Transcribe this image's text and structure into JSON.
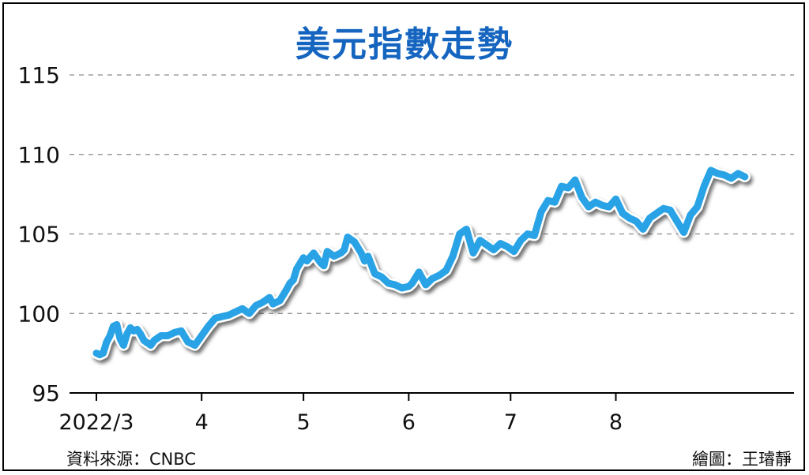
{
  "title": "美元指數走勢",
  "source": "資料來源：CNBC",
  "credit": "繪圖：王璿靜",
  "colors": {
    "line": "#29a3e6",
    "title": "#1565c0"
  },
  "chart_data": {
    "type": "line",
    "title": "美元指數走勢",
    "xlabel": "",
    "ylabel": "",
    "ylim": [
      95,
      115
    ],
    "yticks": [
      95,
      100,
      105,
      110,
      115
    ],
    "grid": "horizontal dashed",
    "xlim": [
      "2022-03-01",
      "2022-09-12"
    ],
    "xticks": [
      {
        "label": "2022/3",
        "date": "2022-03-01"
      },
      {
        "label": "4",
        "date": "2022-04-01"
      },
      {
        "label": "5",
        "date": "2022-05-01"
      },
      {
        "label": "6",
        "date": "2022-06-01"
      },
      {
        "label": "7",
        "date": "2022-07-01"
      },
      {
        "label": "8",
        "date": "2022-08-01"
      }
    ],
    "series": [
      {
        "x": [
          "2022-03-01",
          "2022-03-02",
          "2022-03-03",
          "2022-03-04",
          "2022-03-05",
          "2022-03-06",
          "2022-03-07",
          "2022-03-08",
          "2022-03-09",
          "2022-03-10",
          "2022-03-11",
          "2022-03-12",
          "2022-03-13",
          "2022-03-14",
          "2022-03-15",
          "2022-03-17",
          "2022-03-18",
          "2022-03-20",
          "2022-03-22",
          "2022-03-24",
          "2022-03-26",
          "2022-03-28",
          "2022-03-30",
          "2022-04-01",
          "2022-04-03",
          "2022-04-05",
          "2022-04-07",
          "2022-04-09",
          "2022-04-11",
          "2022-04-13",
          "2022-04-15",
          "2022-04-17",
          "2022-04-19",
          "2022-04-21",
          "2022-04-22",
          "2022-04-24",
          "2022-04-26",
          "2022-04-27",
          "2022-04-28",
          "2022-04-29",
          "2022-05-01",
          "2022-05-02",
          "2022-05-04",
          "2022-05-06",
          "2022-05-07",
          "2022-05-08",
          "2022-05-10",
          "2022-05-12",
          "2022-05-13",
          "2022-05-14",
          "2022-05-16",
          "2022-05-18",
          "2022-05-19",
          "2022-05-20",
          "2022-05-22",
          "2022-05-24",
          "2022-05-26",
          "2022-05-28",
          "2022-05-30",
          "2022-06-01",
          "2022-06-02",
          "2022-06-04",
          "2022-06-06",
          "2022-06-08",
          "2022-06-10",
          "2022-06-12",
          "2022-06-14",
          "2022-06-16",
          "2022-06-18",
          "2022-06-20",
          "2022-06-22",
          "2022-06-24",
          "2022-06-26",
          "2022-06-28",
          "2022-06-30",
          "2022-07-02",
          "2022-07-04",
          "2022-07-06",
          "2022-07-08",
          "2022-07-10",
          "2022-07-12",
          "2022-07-14",
          "2022-07-16",
          "2022-07-18",
          "2022-07-20",
          "2022-07-22",
          "2022-07-24",
          "2022-07-26",
          "2022-07-28",
          "2022-07-30",
          "2022-08-01",
          "2022-08-03",
          "2022-08-05",
          "2022-08-07",
          "2022-08-09",
          "2022-08-11",
          "2022-08-13",
          "2022-08-15",
          "2022-08-17",
          "2022-08-19",
          "2022-08-21",
          "2022-08-23",
          "2022-08-25",
          "2022-08-27",
          "2022-08-29",
          "2022-08-31",
          "2022-09-02",
          "2022-09-04",
          "2022-09-06",
          "2022-09-08"
        ],
        "values": [
          97.5,
          97.4,
          97.5,
          98.2,
          98.6,
          99.2,
          99.3,
          98.4,
          98.0,
          98.7,
          99.1,
          98.9,
          99.0,
          98.7,
          98.3,
          98.0,
          98.3,
          98.6,
          98.6,
          98.8,
          98.9,
          98.2,
          98.0,
          98.6,
          99.2,
          99.7,
          99.8,
          99.9,
          100.1,
          100.3,
          100.0,
          100.5,
          100.7,
          101.0,
          100.6,
          100.8,
          101.5,
          101.9,
          102.1,
          102.8,
          103.5,
          103.3,
          103.8,
          103.2,
          103.0,
          103.9,
          103.6,
          103.8,
          104.0,
          104.8,
          104.5,
          103.8,
          103.3,
          103.6,
          102.5,
          102.3,
          101.9,
          101.8,
          101.6,
          101.7,
          101.9,
          102.6,
          101.8,
          102.2,
          102.4,
          102.7,
          103.6,
          105.0,
          105.3,
          103.8,
          104.6,
          104.3,
          104.0,
          104.4,
          104.2,
          103.9,
          104.6,
          105.0,
          104.9,
          106.4,
          107.1,
          107.0,
          108.0,
          107.9,
          108.4,
          107.3,
          106.7,
          107.0,
          106.8,
          106.7,
          107.2,
          106.3,
          106.0,
          105.8,
          105.3,
          106.0,
          106.3,
          106.6,
          106.5,
          105.8,
          105.1,
          106.2,
          106.7,
          108.0,
          109.0,
          108.8,
          108.7,
          108.5,
          108.8,
          108.6
        ]
      }
    ]
  }
}
